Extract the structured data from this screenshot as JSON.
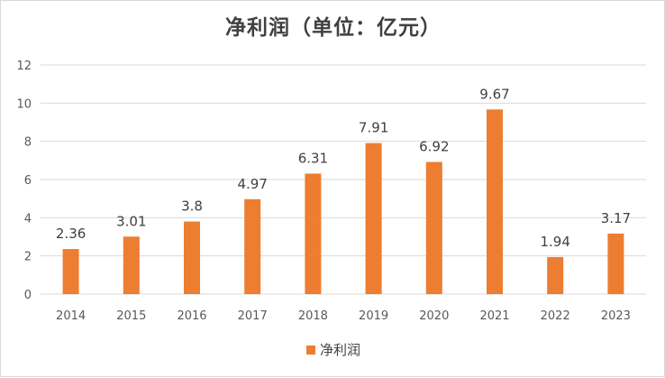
{
  "chart_data": {
    "type": "bar",
    "title": "净利润（单位：亿元）",
    "categories": [
      "2014",
      "2015",
      "2016",
      "2017",
      "2018",
      "2019",
      "2020",
      "2021",
      "2022",
      "2023"
    ],
    "series": [
      {
        "name": "净利润",
        "values": [
          2.36,
          3.01,
          3.8,
          4.97,
          6.31,
          7.91,
          6.92,
          9.67,
          1.94,
          3.17
        ],
        "labels": [
          "2.36",
          "3.01",
          "3.8",
          "4.97",
          "6.31",
          "7.91",
          "6.92",
          "9.67",
          "1.94",
          "3.17"
        ]
      }
    ],
    "ylim": [
      0,
      12
    ],
    "yticks": [
      "0",
      "2",
      "4",
      "6",
      "8",
      "10",
      "12"
    ],
    "grid": true,
    "legend_position": "bottom",
    "xlabel": "",
    "ylabel": ""
  },
  "colors": {
    "bar": "#ed7d31",
    "grid": "#d9d9d9",
    "text": "#595959",
    "label": "#404040"
  }
}
